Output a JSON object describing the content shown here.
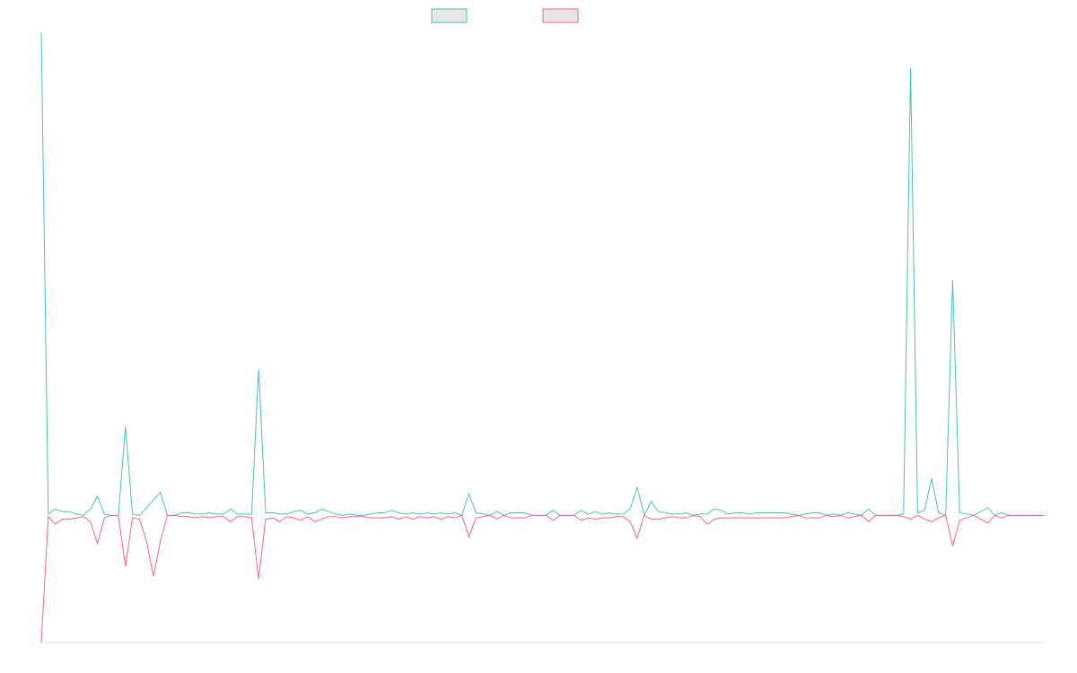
{
  "colors": {
    "series_a": "#4bc0c0",
    "series_b": "#ff6384",
    "legend_fill": "#e6e6e6",
    "axis": "#e0e0e0"
  },
  "chart_data": {
    "type": "line",
    "title": "",
    "xlabel": "",
    "ylabel": "",
    "grid": false,
    "legend": {
      "position": "top",
      "labels_visible": false
    },
    "ylim": [
      -1.0,
      3.8
    ],
    "x": [
      0,
      1,
      2,
      3,
      4,
      5,
      6,
      7,
      8,
      9,
      10,
      11,
      12,
      13,
      14,
      15,
      16,
      17,
      18,
      19,
      20,
      21,
      22,
      23,
      24,
      25,
      26,
      27,
      28,
      29,
      30,
      31,
      32,
      33,
      34,
      35,
      36,
      37,
      38,
      39,
      40,
      41,
      42,
      43,
      44,
      45,
      46,
      47,
      48,
      49,
      50,
      51,
      52,
      53,
      54,
      55,
      56,
      57,
      58,
      59,
      60,
      61,
      62,
      63,
      64,
      65,
      66,
      67,
      68,
      69,
      70,
      71,
      72,
      73,
      74,
      75,
      76,
      77,
      78,
      79,
      80,
      81,
      82,
      83,
      84,
      85,
      86,
      87,
      88,
      89,
      90,
      91,
      92,
      93,
      94,
      95,
      96,
      97,
      98,
      99,
      100,
      101,
      102,
      103,
      104,
      105,
      106,
      107,
      108,
      109,
      110,
      111,
      112,
      113,
      114,
      115,
      116,
      117,
      118,
      119,
      120,
      121,
      122,
      123,
      124,
      125,
      126,
      127,
      128,
      129,
      130,
      131,
      132,
      133,
      134,
      135,
      136,
      137,
      138,
      139,
      140,
      141,
      142,
      143
    ],
    "series": [
      {
        "color_key": "series_a",
        "values": [
          3.8,
          0.01,
          0.05,
          0.03,
          0.03,
          0.01,
          0.0,
          0.05,
          0.15,
          0.01,
          0.0,
          0.0,
          0.7,
          0.01,
          0.0,
          0.06,
          0.12,
          0.18,
          0.0,
          0.0,
          0.02,
          0.02,
          0.01,
          0.01,
          0.02,
          0.01,
          0.01,
          0.05,
          0.01,
          0.01,
          0.01,
          1.15,
          0.02,
          0.02,
          0.01,
          0.01,
          0.03,
          0.04,
          0.01,
          0.02,
          0.05,
          0.03,
          0.01,
          0.0,
          0.01,
          0.0,
          0.0,
          0.01,
          0.02,
          0.02,
          0.04,
          0.02,
          0.01,
          0.02,
          0.01,
          0.02,
          0.01,
          0.02,
          0.01,
          0.02,
          0.0,
          0.17,
          0.02,
          0.01,
          0.0,
          0.03,
          0.0,
          0.02,
          0.02,
          0.02,
          0.0,
          0.0,
          0.0,
          0.04,
          0.0,
          0.0,
          0.0,
          0.04,
          0.01,
          0.03,
          0.01,
          0.02,
          0.01,
          0.01,
          0.05,
          0.22,
          0.0,
          0.11,
          0.03,
          0.02,
          0.01,
          0.01,
          0.02,
          0.0,
          0.01,
          0.01,
          0.05,
          0.04,
          0.01,
          0.02,
          0.02,
          0.01,
          0.02,
          0.02,
          0.02,
          0.02,
          0.02,
          0.01,
          0.0,
          0.01,
          0.02,
          0.02,
          0.0,
          0.01,
          0.0,
          0.02,
          0.01,
          0.0,
          0.05,
          0.0,
          0.0,
          0.0,
          0.0,
          0.01,
          3.52,
          0.02,
          0.04,
          0.29,
          0.02,
          0.0,
          1.85,
          0.02,
          0.01,
          0.0,
          0.03,
          0.06,
          0.0,
          0.02,
          0.0,
          0.0,
          0.0,
          0.0,
          0.0,
          0.0
        ]
      },
      {
        "color_key": "series_b",
        "values": [
          -1.0,
          -0.01,
          -0.07,
          -0.03,
          -0.03,
          -0.02,
          -0.01,
          -0.05,
          -0.22,
          -0.02,
          0.0,
          0.0,
          -0.4,
          -0.02,
          -0.03,
          -0.2,
          -0.48,
          -0.2,
          0.0,
          0.0,
          -0.01,
          -0.01,
          -0.02,
          -0.01,
          -0.02,
          -0.01,
          -0.01,
          -0.05,
          -0.01,
          -0.01,
          -0.02,
          -0.5,
          -0.03,
          -0.02,
          -0.05,
          -0.01,
          -0.02,
          -0.04,
          -0.01,
          -0.05,
          -0.03,
          -0.01,
          -0.01,
          -0.02,
          -0.01,
          -0.01,
          -0.01,
          -0.02,
          -0.02,
          -0.02,
          -0.01,
          -0.03,
          -0.01,
          -0.03,
          -0.01,
          -0.02,
          -0.01,
          -0.03,
          -0.01,
          -0.02,
          0.0,
          -0.17,
          -0.02,
          -0.01,
          0.0,
          -0.03,
          0.0,
          -0.02,
          -0.02,
          -0.02,
          0.0,
          0.0,
          0.0,
          -0.04,
          0.0,
          0.0,
          0.0,
          -0.04,
          -0.02,
          -0.03,
          -0.02,
          -0.02,
          -0.01,
          -0.01,
          -0.05,
          -0.18,
          0.0,
          -0.03,
          -0.03,
          -0.02,
          -0.01,
          -0.02,
          -0.02,
          0.0,
          -0.01,
          -0.07,
          -0.03,
          -0.02,
          -0.02,
          -0.02,
          -0.02,
          -0.02,
          -0.02,
          -0.02,
          -0.02,
          -0.02,
          -0.02,
          -0.01,
          0.0,
          -0.02,
          -0.02,
          -0.02,
          0.0,
          -0.01,
          0.0,
          -0.02,
          -0.01,
          0.0,
          -0.05,
          0.0,
          0.0,
          0.0,
          0.0,
          -0.01,
          -0.03,
          0.0,
          -0.03,
          -0.05,
          -0.02,
          0.0,
          -0.24,
          -0.04,
          -0.02,
          0.0,
          -0.03,
          -0.06,
          0.0,
          -0.02,
          0.0,
          0.0,
          0.0,
          0.0,
          0.0,
          0.0
        ]
      }
    ]
  }
}
